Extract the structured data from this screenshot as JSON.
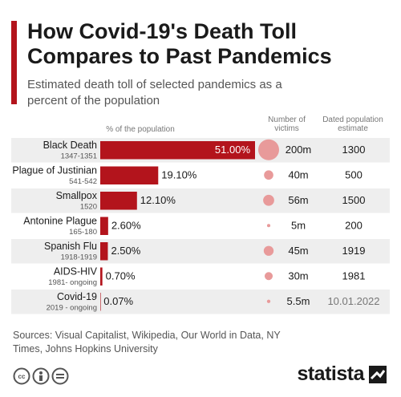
{
  "chart_data": {
    "type": "bar",
    "orientation": "horizontal",
    "title": "How Covid-19's Death Toll Compares to Past Pandemics",
    "subtitle": "Estimated death toll of selected pandemics as a percent of the population",
    "x_label": "% of the population",
    "categories": [
      "Black Death",
      "Plague of Justinian",
      "Smallpox",
      "Antonine Plague",
      "Spanish Flu",
      "AIDS-HIV",
      "Covid-19"
    ],
    "periods": [
      "1347-1351",
      "541-542",
      "1520",
      "165-180",
      "1918-1919",
      "1981- ongoing",
      "2019 - ongoing"
    ],
    "values": [
      51,
      19.1,
      12.1,
      2.6,
      2.5,
      0.7,
      0.07
    ],
    "value_labels": [
      "51.00%",
      "19.10%",
      "12.10%",
      "2.60%",
      "2.50%",
      "0.70%",
      "0.07%"
    ],
    "color": "#b3141c",
    "victims": {
      "label": "Number of victims",
      "values": [
        200,
        40,
        56,
        5,
        45,
        30,
        5.5
      ],
      "value_labels": [
        "200m",
        "40m",
        "56m",
        "5m",
        "45m",
        "30m",
        "5.5m"
      ],
      "color": "#e89a9a"
    },
    "population_estimate": {
      "label": "Dated population estimate",
      "values": [
        "1300",
        "500",
        "1500",
        "200",
        "1919",
        "1981",
        "10.01.2022"
      ]
    },
    "sources": "Sources: Visual Capitalist, Wikipedia, Our World in Data, NY Times, Johns Hopkins University",
    "brand": "statista"
  }
}
